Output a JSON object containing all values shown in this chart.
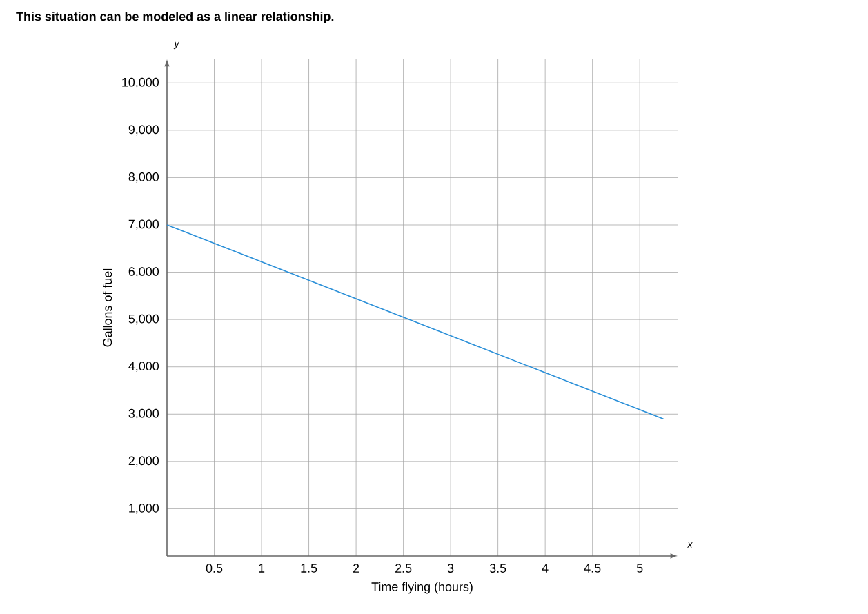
{
  "chart_data": {
    "type": "line",
    "title": "This situation can be modeled as a linear relationship.",
    "xlabel": "Time flying (hours)",
    "ylabel": "Gallons of fuel",
    "x": [
      0,
      5.25
    ],
    "series": [
      {
        "color": "#2a8fd8",
        "values": [
          7000,
          2900
        ]
      }
    ],
    "xlim": [
      0,
      5.4
    ],
    "ylim": [
      0,
      10500
    ],
    "xticks": [
      {
        "value": 0.5,
        "label": "0.5"
      },
      1,
      {
        "value": 1.5,
        "label": "1.5"
      },
      2,
      {
        "value": 2.5,
        "label": "2.5"
      },
      3,
      {
        "value": 3.5,
        "label": "3.5"
      },
      4,
      {
        "value": 4.5,
        "label": "4.5"
      },
      5
    ],
    "yticks": [
      {
        "value": 1000,
        "label": "1,000"
      },
      {
        "value": 2000,
        "label": "2,000"
      },
      {
        "value": 3000,
        "label": "3,000"
      },
      {
        "value": 4000,
        "label": "4,000"
      },
      {
        "value": 5000,
        "label": "5,000"
      },
      {
        "value": 6000,
        "label": "6,000"
      },
      {
        "value": 7000,
        "label": "7,000"
      },
      {
        "value": 8000,
        "label": "8,000"
      },
      {
        "value": 9000,
        "label": "9,000"
      },
      {
        "value": 10000,
        "label": "10,000"
      }
    ],
    "grid": true,
    "marker": "none",
    "line_style": "solid",
    "annotations": [
      "y",
      "x"
    ]
  }
}
